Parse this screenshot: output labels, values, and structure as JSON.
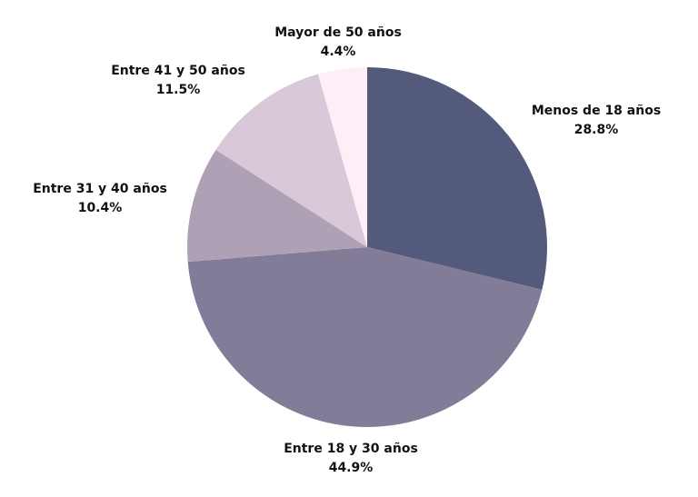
{
  "chart_data": {
    "type": "pie",
    "title": "",
    "slices": [
      {
        "label": "Menos de 18 años",
        "value": 28.8,
        "pct_text": "28.8%",
        "color": "#535a7b"
      },
      {
        "label": "Entre 18 y 30 años",
        "value": 44.9,
        "pct_text": "44.9%",
        "color": "#837c98"
      },
      {
        "label": "Entre 31 y 40 años",
        "value": 10.4,
        "pct_text": "10.4%",
        "color": "#aea1b6"
      },
      {
        "label": "Entre 41 y 50 años",
        "value": 11.5,
        "pct_text": "11.5%",
        "color": "#d8c8d8"
      },
      {
        "label": "Mayor de 50 años",
        "value": 4.4,
        "pct_text": "4.4%",
        "color": "#fdeff8"
      }
    ],
    "start": "top",
    "direction": "clockwise",
    "legend": "none",
    "labels": "outside"
  }
}
